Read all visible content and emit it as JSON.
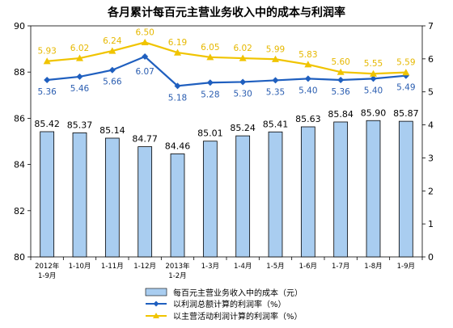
{
  "chart_data": {
    "type": "bar",
    "title": "各月累计每百元主营业务收入中的成本与利润率",
    "categories": [
      [
        "2012年",
        "1-9月"
      ],
      [
        "1-10月"
      ],
      [
        "1-11月"
      ],
      [
        "1-12月"
      ],
      [
        "2013年",
        "1-2月"
      ],
      [
        "1-3月"
      ],
      [
        "1-4月"
      ],
      [
        "1-5月"
      ],
      [
        "1-6月"
      ],
      [
        "1-7月"
      ],
      [
        "1-8月"
      ],
      [
        "1-9月"
      ]
    ],
    "left_axis": {
      "min": 80,
      "max": 90,
      "ticks": [
        80,
        82,
        84,
        86,
        88,
        90
      ]
    },
    "right_axis": {
      "min": 0,
      "max": 7,
      "ticks": [
        0,
        1,
        2,
        3,
        4,
        5,
        6,
        7
      ]
    },
    "series": [
      {
        "name": "每百元主营业务收入中的成本（元）",
        "kind": "bar",
        "axis": "left",
        "color": "#a9cdf0",
        "values": [
          85.42,
          85.37,
          85.14,
          84.77,
          84.46,
          85.01,
          85.24,
          85.41,
          85.63,
          85.84,
          85.9,
          85.87
        ],
        "labels": [
          "85.42",
          "85.37",
          "85.14",
          "84.77",
          "84.46",
          "85.01",
          "85.24",
          "85.41",
          "85.63",
          "85.84",
          "85.90",
          "85.87"
        ]
      },
      {
        "name": "以利润总额计算的利润率（%）",
        "kind": "line",
        "axis": "right",
        "color": "#1f5fbf",
        "marker": "diamond",
        "values": [
          5.36,
          5.46,
          5.66,
          6.07,
          5.18,
          5.28,
          5.3,
          5.35,
          5.4,
          5.36,
          5.4,
          5.49
        ],
        "labels": [
          "5.36",
          "5.46",
          "5.66",
          "6.07",
          "5.18",
          "5.28",
          "5.30",
          "5.35",
          "5.40",
          "5.36",
          "5.40",
          "5.49"
        ]
      },
      {
        "name": "以主营活动利润计算的利润率（%）",
        "kind": "line",
        "axis": "right",
        "color": "#f0c400",
        "marker": "triangle",
        "values": [
          5.93,
          6.02,
          6.24,
          6.5,
          6.19,
          6.05,
          6.02,
          5.99,
          5.83,
          5.6,
          5.55,
          5.59
        ],
        "labels": [
          "5.93",
          "6.02",
          "6.24",
          "6.50",
          "6.19",
          "6.05",
          "6.02",
          "5.99",
          "5.83",
          "5.60",
          "5.55",
          "5.59"
        ]
      }
    ],
    "legend_position": "bottom"
  }
}
